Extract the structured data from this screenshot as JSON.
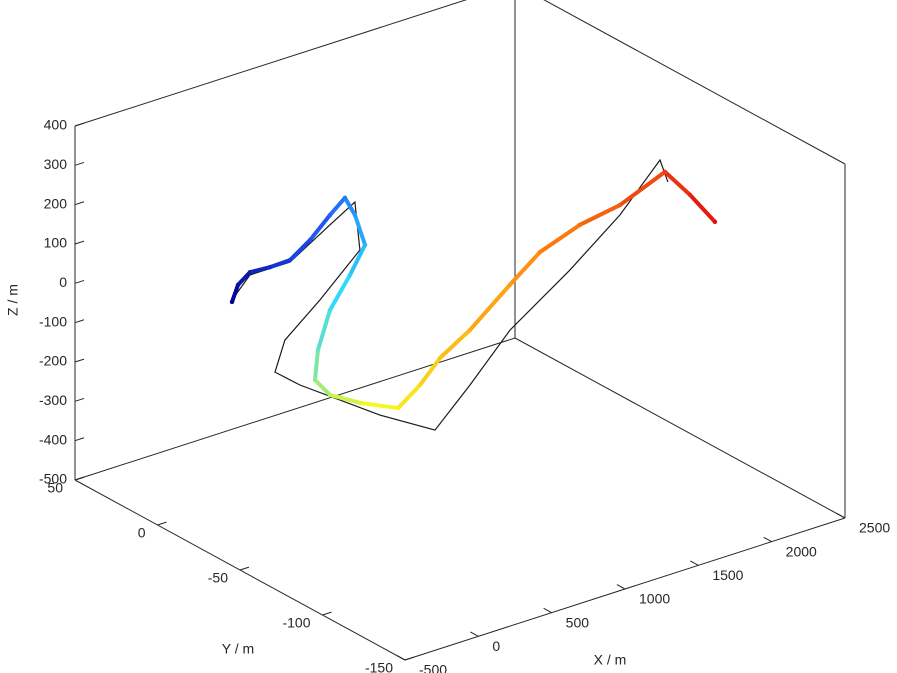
{
  "chart_data": {
    "type": "line3d",
    "xlabel": "X / m",
    "ylabel": "Y / m",
    "zlabel": "Z / m",
    "xlim": [
      -500,
      2500
    ],
    "ylim": [
      -150,
      50
    ],
    "zlim": [
      -500,
      400
    ],
    "xticks": [
      -500,
      0,
      500,
      1000,
      1500,
      2000,
      2500
    ],
    "yticks": [
      -150,
      -100,
      -50,
      0,
      50
    ],
    "zticks": [
      -500,
      -400,
      -300,
      -200,
      -100,
      0,
      100,
      200,
      300,
      400
    ],
    "box_color": "#262626",
    "series": [
      {
        "color": "#1a1a1a",
        "x": [
          8,
          74,
          291,
          507,
          621,
          599,
          270,
          -25,
          -149,
          -35,
          454,
          773,
          955,
          1172,
          1525,
          1809,
          2026,
          2024
        ],
        "y": [
          0,
          -5,
          -10,
          -15,
          -20,
          -25,
          -30,
          -35,
          -40,
          -45,
          -50,
          -55,
          -60,
          -65,
          -70,
          -75,
          -80,
          -85
        ],
        "z": [
          11,
          78,
          96,
          176,
          232,
          124,
          48,
          -7,
          -62,
          -97,
          -221,
          -286,
          -182,
          -57,
          65,
          182,
          307,
          263
        ]
      },
      {
        "colormap": [
          "#00008f",
          "#1f50f0",
          "#2ed8ff",
          "#f8f820",
          "#ff8a10",
          "#e01010"
        ],
        "x": [
          8,
          4,
          41,
          132,
          223,
          315,
          406,
          463,
          486,
          510,
          362,
          181,
          54,
          -11,
          46,
          206,
          420,
          525,
          616,
          775,
          1003,
          1163,
          1390,
          1618,
          1880,
          2005,
          2131
        ],
        "y": [
          0,
          -4,
          -8,
          -12,
          -16,
          -20,
          -24,
          -28,
          -32,
          -36,
          -40,
          -44,
          -48,
          -52,
          -56,
          -60,
          -64,
          -68,
          -72,
          -76,
          -80,
          -84,
          -88,
          -92,
          -96,
          -100,
          -104
        ],
        "z": [
          6,
          59,
          96,
          107,
          123,
          172,
          234,
          280,
          243,
          173,
          123,
          65,
          -12,
          -71,
          -107,
          -137,
          -167,
          -112,
          -45,
          16,
          113,
          186,
          237,
          269,
          331,
          267,
          192
        ]
      }
    ]
  }
}
